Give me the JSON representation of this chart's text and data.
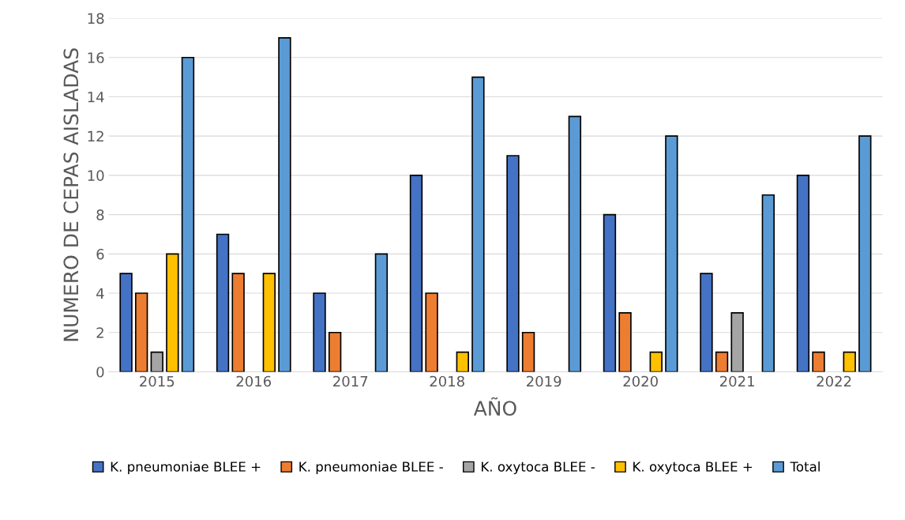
{
  "chart_data": {
    "type": "bar",
    "xlabel": "AÑO",
    "ylabel": "NUMERO DE CEPAS AISLADAS",
    "categories": [
      "2015",
      "2016",
      "2017",
      "2018",
      "2019",
      "2020",
      "2021",
      "2022"
    ],
    "series": [
      {
        "name": "K. pneumoniae BLEE +",
        "color": "#4472c4",
        "values": [
          5,
          7,
          4,
          10,
          11,
          8,
          5,
          10
        ]
      },
      {
        "name": "K. pneumoniae BLEE -",
        "color": "#ed7d31",
        "values": [
          4,
          5,
          2,
          4,
          2,
          3,
          1,
          1
        ]
      },
      {
        "name": "K. oxytoca BLEE -",
        "color": "#a5a5a5",
        "values": [
          1,
          null,
          null,
          null,
          null,
          null,
          3,
          null
        ]
      },
      {
        "name": "K. oxytoca BLEE +",
        "color": "#ffc000",
        "values": [
          6,
          5,
          null,
          1,
          null,
          1,
          null,
          1
        ]
      },
      {
        "name": "Total",
        "color": "#5b9bd5",
        "values": [
          16,
          17,
          6,
          15,
          13,
          12,
          9,
          12
        ]
      }
    ],
    "ylim": [
      0,
      18
    ],
    "yticks": [
      0,
      2,
      4,
      6,
      8,
      10,
      12,
      14,
      16,
      18
    ],
    "grid": "y",
    "legend": "bottom"
  }
}
